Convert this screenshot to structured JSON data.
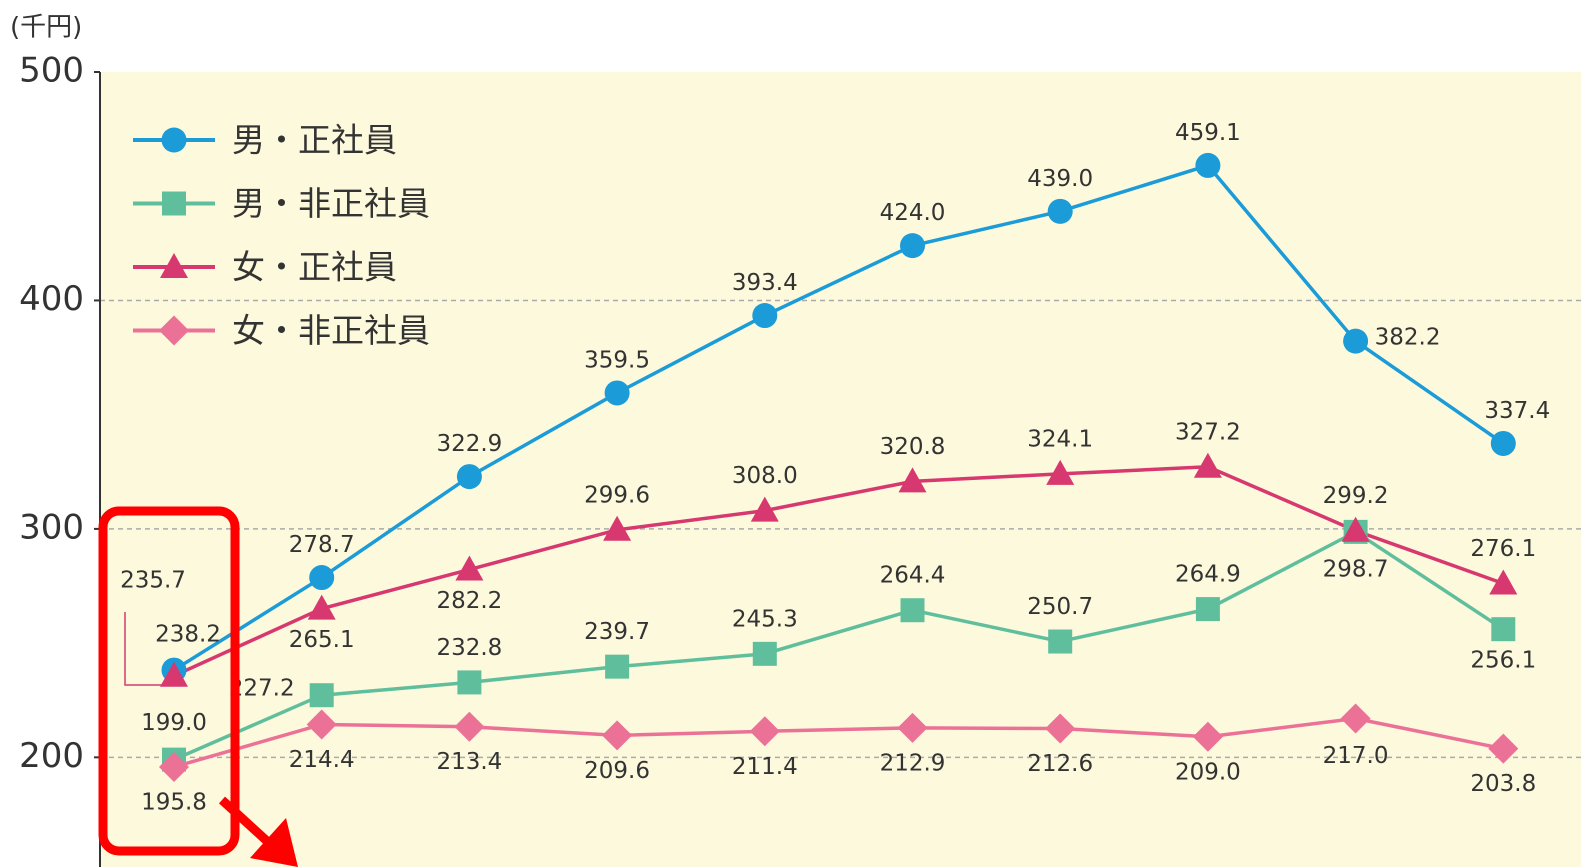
{
  "chart_data": {
    "type": "line",
    "y_unit": "(千円)",
    "categories": [
      null,
      null,
      null,
      null,
      null,
      null,
      null,
      null,
      null,
      null
    ],
    "ylim": [
      152,
      500
    ],
    "yticks": [
      200,
      300,
      400,
      500
    ],
    "grid": true,
    "legend": "upper left",
    "series": [
      {
        "name": "男・正社員",
        "color": "#1b9bd7",
        "marker": "circle",
        "values": [
          238.2,
          278.7,
          322.9,
          359.5,
          393.4,
          424.0,
          439.0,
          459.1,
          382.2,
          337.4
        ],
        "value_labels": [
          "238.2",
          "278.7",
          "322.9",
          "359.5",
          "393.4",
          "424.0",
          "439.0",
          "459.1",
          "382.2",
          "337.4"
        ]
      },
      {
        "name": "男・非正社員",
        "color": "#5fbf9d",
        "marker": "square",
        "values": [
          199.0,
          227.2,
          232.8,
          239.7,
          245.3,
          264.4,
          250.7,
          264.9,
          298.7,
          256.1
        ],
        "value_labels": [
          "199.0",
          "227.2",
          "232.8",
          "239.7",
          "245.3",
          "264.4",
          "250.7",
          "264.9",
          "298.7",
          "256.1"
        ]
      },
      {
        "name": "女・正社員",
        "color": "#d6386f",
        "marker": "triangle",
        "values": [
          235.7,
          265.1,
          282.2,
          299.6,
          308.0,
          320.8,
          324.1,
          327.2,
          299.2,
          276.1
        ],
        "value_labels": [
          "235.7",
          "265.1",
          "282.2",
          "299.6",
          "308.0",
          "320.8",
          "324.1",
          "327.2",
          "299.2",
          "276.1"
        ]
      },
      {
        "name": "女・非正社員",
        "color": "#ec7197",
        "marker": "diamond",
        "values": [
          195.8,
          214.4,
          213.4,
          209.6,
          211.4,
          212.9,
          212.6,
          209.0,
          217.0,
          203.8
        ],
        "value_labels": [
          "195.8",
          "214.4",
          "213.4",
          "209.6",
          "211.4",
          "212.9",
          "212.6",
          "209.0",
          "217.0",
          "203.8"
        ]
      }
    ]
  }
}
